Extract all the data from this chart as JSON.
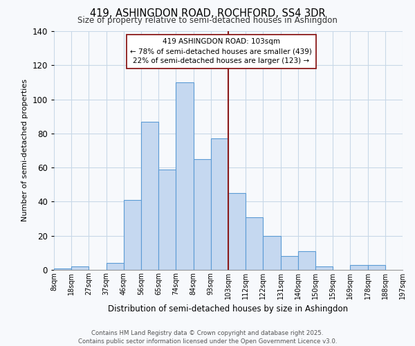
{
  "title": "419, ASHINGDON ROAD, ROCHFORD, SS4 3DR",
  "subtitle": "Size of property relative to semi-detached houses in Ashingdon",
  "xlabel": "Distribution of semi-detached houses by size in Ashingdon",
  "ylabel": "Number of semi-detached properties",
  "bin_labels": [
    "8sqm",
    "18sqm",
    "27sqm",
    "37sqm",
    "46sqm",
    "56sqm",
    "65sqm",
    "74sqm",
    "84sqm",
    "93sqm",
    "103sqm",
    "112sqm",
    "122sqm",
    "131sqm",
    "140sqm",
    "150sqm",
    "159sqm",
    "169sqm",
    "178sqm",
    "188sqm",
    "197sqm"
  ],
  "all_counts": [
    1,
    2,
    0,
    4,
    41,
    87,
    59,
    110,
    65,
    77,
    45,
    31,
    20,
    8,
    11,
    2,
    0,
    3,
    3,
    0
  ],
  "bar_color": "#c5d8f0",
  "bar_edge_color": "#5b9bd5",
  "property_bin_idx": 10,
  "property_line_color": "#8b1a1a",
  "annotation_line1": "419 ASHINGDON ROAD: 103sqm",
  "annotation_line2": "← 78% of semi-detached houses are smaller (439)",
  "annotation_line3": "22% of semi-detached houses are larger (123) →",
  "ylim": [
    0,
    140
  ],
  "yticks": [
    0,
    20,
    40,
    60,
    80,
    100,
    120,
    140
  ],
  "background_color": "#f7f9fc",
  "grid_color": "#c8d8e8",
  "footer_line1": "Contains HM Land Registry data © Crown copyright and database right 2025.",
  "footer_line2": "Contains public sector information licensed under the Open Government Licence v3.0."
}
